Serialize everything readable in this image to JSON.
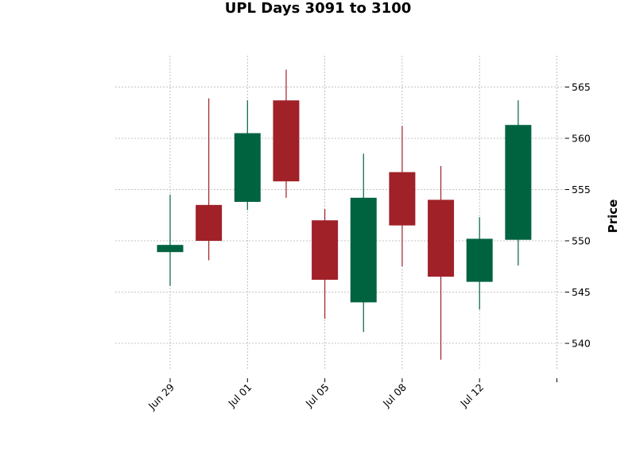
{
  "chart_data": {
    "type": "candlestick",
    "title": "UPL Days 3091 to 3100",
    "xlabel": "",
    "ylabel": "Price",
    "ylim": [
      536.8,
      568.1
    ],
    "yticks": [
      540,
      545,
      550,
      555,
      560,
      565
    ],
    "xtick_labels": [
      "Jun 29",
      "Jul 01",
      "Jul 05",
      "Jul 08",
      "Jul 12",
      ""
    ],
    "xtick_positions": [
      0,
      2,
      4,
      6,
      8,
      10
    ],
    "grid": true,
    "colors": {
      "up": "#006340",
      "down": "#a02128"
    },
    "candles": [
      {
        "x": 0,
        "open": 548.9,
        "high": 554.5,
        "low": 545.6,
        "close": 549.6
      },
      {
        "x": 1,
        "open": 553.5,
        "high": 563.9,
        "low": 548.1,
        "close": 550.0
      },
      {
        "x": 2,
        "open": 553.8,
        "high": 563.7,
        "low": 553.0,
        "close": 560.5
      },
      {
        "x": 3,
        "open": 563.7,
        "high": 566.7,
        "low": 554.2,
        "close": 555.8
      },
      {
        "x": 4,
        "open": 552.0,
        "high": 553.1,
        "low": 542.4,
        "close": 546.2
      },
      {
        "x": 5,
        "open": 544.0,
        "high": 558.5,
        "low": 541.1,
        "close": 554.2
      },
      {
        "x": 6,
        "open": 556.7,
        "high": 561.2,
        "low": 547.5,
        "close": 551.5
      },
      {
        "x": 7,
        "open": 554.0,
        "high": 557.3,
        "low": 538.4,
        "close": 546.5
      },
      {
        "x": 8,
        "open": 546.0,
        "high": 552.3,
        "low": 543.3,
        "close": 550.2
      },
      {
        "x": 9,
        "open": 550.1,
        "high": 563.7,
        "low": 547.6,
        "close": 561.3
      }
    ]
  }
}
